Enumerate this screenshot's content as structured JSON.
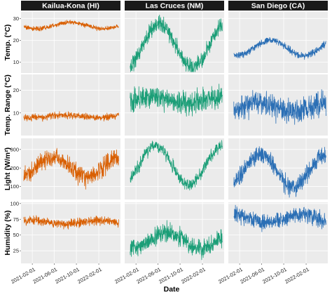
{
  "chart_data": {
    "type": "line",
    "xlabel": "Date",
    "x_ticks": [
      "2021-02-01",
      "2021-06-01",
      "2021-10-01",
      "2022-02-01"
    ],
    "x_range": [
      "2020-12-01",
      "2022-05-31"
    ],
    "colors": {
      "Kailua-Kona (HI)": "#d95f02",
      "Las Cruces (NM)": "#1b9e77",
      "San Diego (CA)": "#2b6fb5",
      "strip": "#1a1a1a",
      "panel": "#ebebeb",
      "grid": "#ffffff"
    },
    "grid": true,
    "columns": [
      "Kailua-Kona (HI)",
      "Las Cruces (NM)",
      "San Diego (CA)"
    ],
    "rows": [
      {
        "label": "Temp. (°C)",
        "ylim": [
          5,
          33
        ],
        "yticks": [
          10,
          20,
          30
        ]
      },
      {
        "label": "Temp. Range (°C)",
        "ylim": [
          0,
          27
        ],
        "yticks": [
          10,
          20
        ]
      },
      {
        "label": "Light (W/m²)",
        "ylim": [
          30,
          360
        ],
        "yticks": [
          100,
          200,
          300
        ]
      },
      {
        "label": "Humidity (%)",
        "ylim": [
          5,
          102
        ],
        "yticks": [
          25,
          50,
          75,
          100
        ]
      }
    ],
    "series_shape": {
      "Temp. (°C)": {
        "Kailua-Kona (HI)": {
          "mean": 26.8,
          "amp": 1.5,
          "phase_day": 270,
          "noise": 0.9
        },
        "Las Cruces (NM)": {
          "mean": 17.5,
          "amp": 10,
          "phase_day": 190,
          "noise": 3.2
        },
        "San Diego (CA)": {
          "mean": 16.5,
          "amp": 3.5,
          "phase_day": 230,
          "noise": 1.3
        }
      },
      "Temp. Range (°C)": {
        "Kailua-Kona (HI)": {
          "mean": 8.5,
          "amp": 0.6,
          "phase_day": 240,
          "noise": 1.3
        },
        "Las Cruces (NM)": {
          "mean": 15.5,
          "amp": 1.5,
          "phase_day": 150,
          "noise": 4.5
        },
        "San Diego (CA)": {
          "mean": 12.5,
          "amp": 2,
          "phase_day": 170,
          "noise": 4.8
        }
      },
      "Light (W/m²)": {
        "Kailua-Kona (HI)": {
          "mean": 205,
          "amp": 50,
          "phase_day": 175,
          "noise": 45
        },
        "Las Cruces (NM)": {
          "mean": 215,
          "amp": 105,
          "phase_day": 170,
          "noise": 30
        },
        "San Diego (CA)": {
          "mean": 185,
          "amp": 90,
          "phase_day": 175,
          "noise": 45
        }
      },
      "Humidity (%)": {
        "Kailua-Kona (HI)": {
          "mean": 70,
          "amp": 3,
          "phase_day": 60,
          "noise": 6
        },
        "Las Cruces (NM)": {
          "mean": 42,
          "amp": 12,
          "phase_day": 240,
          "noise": 13
        },
        "San Diego (CA)": {
          "mean": 76,
          "amp": 6,
          "phase_day": 30,
          "noise": 11
        }
      }
    }
  }
}
